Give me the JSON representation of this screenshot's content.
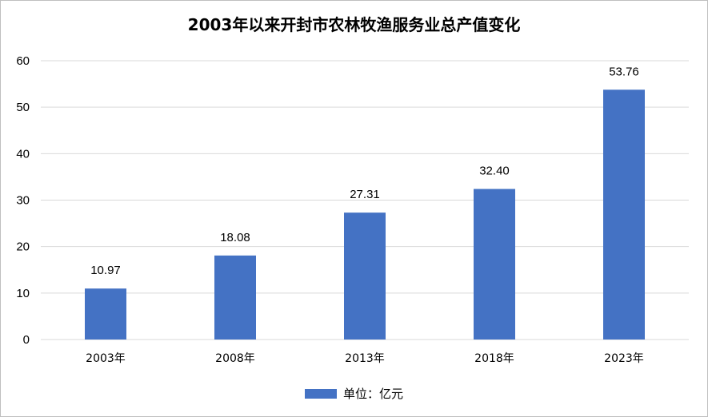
{
  "chart_data": {
    "type": "bar",
    "title": "2003年以来开封市农林牧渔服务业总产值变化",
    "categories": [
      "2003年",
      "2008年",
      "2013年",
      "2018年",
      "2023年"
    ],
    "series": [
      {
        "name": "单位：亿元",
        "values": [
          10.97,
          18.08,
          27.31,
          32.4,
          53.76
        ]
      }
    ],
    "data_labels": [
      "10.97",
      "18.08",
      "27.31",
      "32.40",
      "53.76"
    ],
    "ylim": [
      0,
      60
    ],
    "yticks": [
      0,
      10,
      20,
      30,
      40,
      50,
      60
    ],
    "grid": true,
    "legend_position": "bottom",
    "bar_color": "#4472C4",
    "grid_color": "#d9d9d9"
  }
}
